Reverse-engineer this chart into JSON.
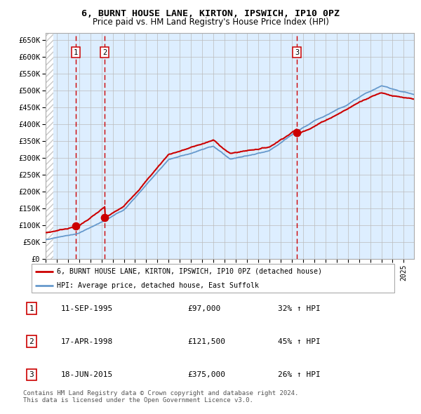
{
  "title1": "6, BURNT HOUSE LANE, KIRTON, IPSWICH, IP10 0PZ",
  "title2": "Price paid vs. HM Land Registry's House Price Index (HPI)",
  "ylabel_ticks": [
    "£0",
    "£50K",
    "£100K",
    "£150K",
    "£200K",
    "£250K",
    "£300K",
    "£350K",
    "£400K",
    "£450K",
    "£500K",
    "£550K",
    "£600K",
    "£650K"
  ],
  "ytick_values": [
    0,
    50000,
    100000,
    150000,
    200000,
    250000,
    300000,
    350000,
    400000,
    450000,
    500000,
    550000,
    600000,
    650000
  ],
  "sale_labels": [
    "1",
    "2",
    "3"
  ],
  "sale_years_float": [
    1995.703,
    1998.292,
    2015.463
  ],
  "sale_prices": [
    97000,
    121500,
    375000
  ],
  "legend_line1": "6, BURNT HOUSE LANE, KIRTON, IPSWICH, IP10 0PZ (detached house)",
  "legend_line2": "HPI: Average price, detached house, East Suffolk",
  "table_rows": [
    [
      "1",
      "11-SEP-1995",
      "£97,000",
      "32% ↑ HPI"
    ],
    [
      "2",
      "17-APR-1998",
      "£121,500",
      "45% ↑ HPI"
    ],
    [
      "3",
      "18-JUN-2015",
      "£375,000",
      "26% ↑ HPI"
    ]
  ],
  "footnote": "Contains HM Land Registry data © Crown copyright and database right 2024.\nThis data is licensed under the Open Government Licence v3.0.",
  "line_color_red": "#cc0000",
  "line_color_blue": "#6699cc",
  "plot_bg": "#ddeeff",
  "hatch_color": "#c8c8c8",
  "grid_color": "#bbbbbb",
  "dashed_color": "#cc0000",
  "xlim_start": 1993.0,
  "xlim_end": 2025.9,
  "ylim_top": 670000
}
